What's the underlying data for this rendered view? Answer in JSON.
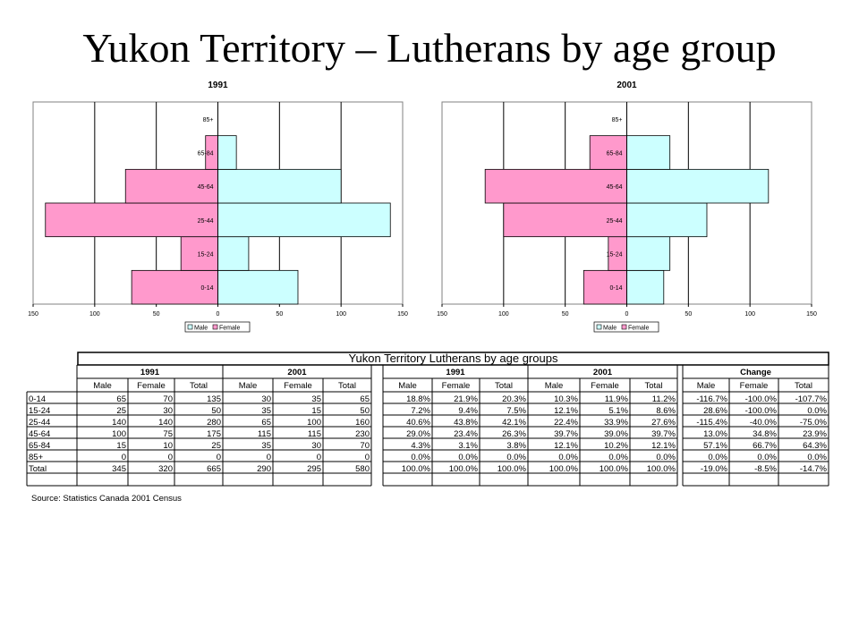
{
  "slide": {
    "title": "Yukon Territory – Lutherans by age group"
  },
  "chart_data": [
    {
      "type": "bar",
      "orientation": "horizontal",
      "title": "1991",
      "categories": [
        "0-14",
        "15-24",
        "25-44",
        "45-64",
        "65-84",
        "85+"
      ],
      "series": [
        {
          "name": "Male",
          "values": [
            65,
            25,
            140,
            100,
            15,
            0
          ],
          "color": "#ccffff"
        },
        {
          "name": "Female",
          "values": [
            70,
            30,
            140,
            75,
            10,
            0
          ],
          "color": "#ff99cc"
        }
      ],
      "xlim": [
        -150,
        150
      ],
      "xticks": [
        "150",
        "100",
        "50",
        "0",
        "50",
        "100",
        "150"
      ],
      "grid": true,
      "legend": "bottom"
    },
    {
      "type": "bar",
      "orientation": "horizontal",
      "title": "2001",
      "categories": [
        "0-14",
        "15-24",
        "25-44",
        "45-64",
        "65-84",
        "85+"
      ],
      "series": [
        {
          "name": "Male",
          "values": [
            30,
            35,
            65,
            115,
            35,
            0
          ],
          "color": "#ccffff"
        },
        {
          "name": "Female",
          "values": [
            35,
            15,
            100,
            115,
            30,
            0
          ],
          "color": "#ff99cc"
        }
      ],
      "xlim": [
        -150,
        150
      ],
      "xticks": [
        "150",
        "100",
        "50",
        "0",
        "50",
        "100",
        "150"
      ],
      "grid": true,
      "legend": "bottom"
    },
    {
      "type": "table",
      "title": "Yukon Territory Lutherans by age groups",
      "groups": [
        "1991",
        "2001",
        "1991",
        "2001",
        "Change"
      ],
      "subheaders": [
        "Male",
        "Female",
        "Total"
      ],
      "rows": [
        {
          "label": "0-14",
          "counts": [
            "65",
            "70",
            "135",
            "30",
            "35",
            "65"
          ],
          "pct": [
            "18.8%",
            "21.9%",
            "20.3%",
            "10.3%",
            "11.9%",
            "11.2%"
          ],
          "change": [
            "-116.7%",
            "-100.0%",
            "-107.7%"
          ]
        },
        {
          "label": "15-24",
          "counts": [
            "25",
            "30",
            "50",
            "35",
            "15",
            "50"
          ],
          "pct": [
            "7.2%",
            "9.4%",
            "7.5%",
            "12.1%",
            "5.1%",
            "8.6%"
          ],
          "change": [
            "28.6%",
            "-100.0%",
            "0.0%"
          ]
        },
        {
          "label": "25-44",
          "counts": [
            "140",
            "140",
            "280",
            "65",
            "100",
            "160"
          ],
          "pct": [
            "40.6%",
            "43.8%",
            "42.1%",
            "22.4%",
            "33.9%",
            "27.6%"
          ],
          "change": [
            "-115.4%",
            "-40.0%",
            "-75.0%"
          ]
        },
        {
          "label": "45-64",
          "counts": [
            "100",
            "75",
            "175",
            "115",
            "115",
            "230"
          ],
          "pct": [
            "29.0%",
            "23.4%",
            "26.3%",
            "39.7%",
            "39.0%",
            "39.7%"
          ],
          "change": [
            "13.0%",
            "34.8%",
            "23.9%"
          ]
        },
        {
          "label": "65-84",
          "counts": [
            "15",
            "10",
            "25",
            "35",
            "30",
            "70"
          ],
          "pct": [
            "4.3%",
            "3.1%",
            "3.8%",
            "12.1%",
            "10.2%",
            "12.1%"
          ],
          "change": [
            "57.1%",
            "66.7%",
            "64.3%"
          ]
        },
        {
          "label": "85+",
          "counts": [
            "0",
            "0",
            "0",
            "0",
            "0",
            "0"
          ],
          "pct": [
            "0.0%",
            "0.0%",
            "0.0%",
            "0.0%",
            "0.0%",
            "0.0%"
          ],
          "change": [
            "0.0%",
            "0.0%",
            "0.0%"
          ]
        },
        {
          "label": "Total",
          "counts": [
            "345",
            "320",
            "665",
            "290",
            "295",
            "580"
          ],
          "pct": [
            "100.0%",
            "100.0%",
            "100.0%",
            "100.0%",
            "100.0%",
            "100.0%"
          ],
          "change": [
            "-19.0%",
            "-8.5%",
            "-14.7%"
          ]
        }
      ],
      "source": "Source: Statistics Canada 2001 Census"
    }
  ]
}
